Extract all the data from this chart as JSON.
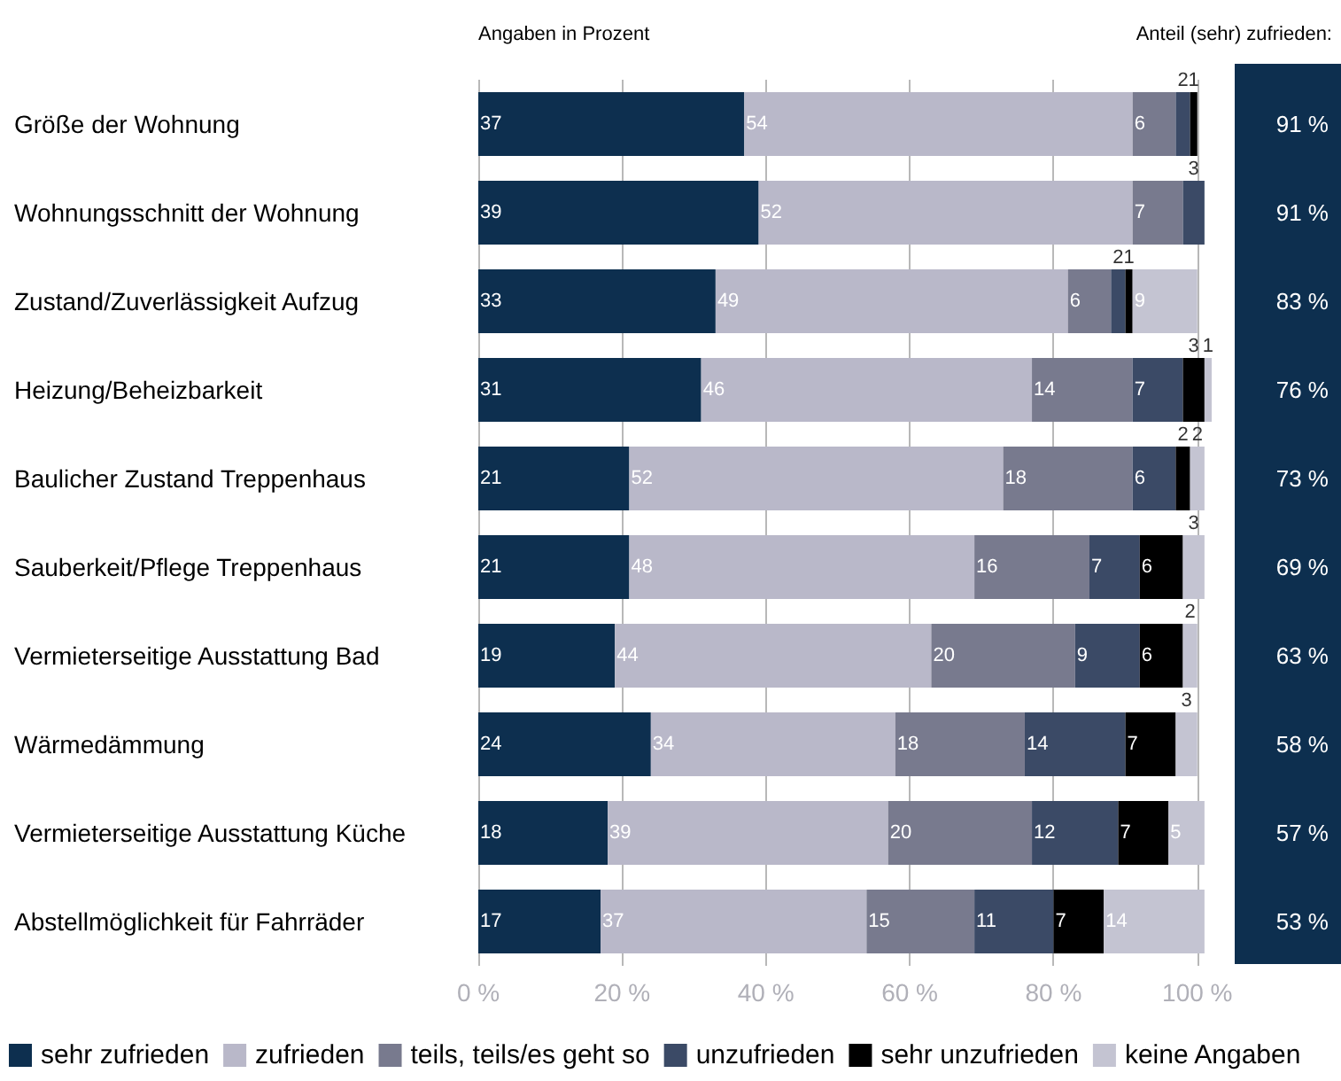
{
  "chart_data": {
    "type": "bar",
    "orientation": "horizontal",
    "stacked": true,
    "subtitle": "Angaben in Prozent",
    "categories": [
      "Größe der Wohnung",
      "Wohnungsschnitt der Wohnung",
      "Zustand/Zuverlässigkeit Aufzug",
      "Heizung/Beheizbarkeit",
      "Baulicher Zustand Treppenhaus",
      "Sauberkeit/Pflege Treppenhaus",
      "Vermieterseitige Ausstattung Bad",
      "Wärmedämmung",
      "Vermieterseitige Ausstattung Küche",
      "Abstellmöglichkeit für Fahrräder"
    ],
    "series": [
      {
        "name": "sehr zufrieden",
        "color": "#0d2f4f",
        "values": [
          37,
          39,
          33,
          31,
          21,
          21,
          19,
          24,
          18,
          17
        ]
      },
      {
        "name": "zufrieden",
        "color": "#b9b8c9",
        "values": [
          54,
          52,
          49,
          46,
          52,
          48,
          44,
          34,
          39,
          37
        ]
      },
      {
        "name": "teils, teils/es geht so",
        "color": "#787a8e",
        "values": [
          6,
          7,
          6,
          14,
          18,
          16,
          20,
          18,
          20,
          15
        ]
      },
      {
        "name": "unzufrieden",
        "color": "#3b4a66",
        "values": [
          2,
          3,
          2,
          7,
          6,
          7,
          9,
          14,
          12,
          11
        ]
      },
      {
        "name": "sehr unzufrieden",
        "color": "#000000",
        "values": [
          1,
          null,
          1,
          3,
          2,
          6,
          6,
          7,
          7,
          7
        ]
      },
      {
        "name": "keine Angaben",
        "color": "#c4c4d2",
        "values": [
          null,
          null,
          9,
          1,
          2,
          3,
          2,
          3,
          5,
          14
        ]
      }
    ],
    "xlim": [
      0,
      102
    ],
    "xticks": [
      {
        "value": 0,
        "label": "0 %"
      },
      {
        "value": 20,
        "label": "20 %"
      },
      {
        "value": 40,
        "label": "40 %"
      },
      {
        "value": 60,
        "label": "60 %"
      },
      {
        "value": 80,
        "label": "80 %"
      },
      {
        "value": 100,
        "label": "100 %"
      }
    ],
    "grid": "x",
    "legend": "bottom",
    "data_labels": true,
    "annotations": [
      "Anteil (sehr) zufrieden:",
      "91 %",
      "91 %",
      "83 %",
      "76 %",
      "73 %",
      "69 %",
      "63 %",
      "58 %",
      "57 %",
      "53 %"
    ]
  }
}
